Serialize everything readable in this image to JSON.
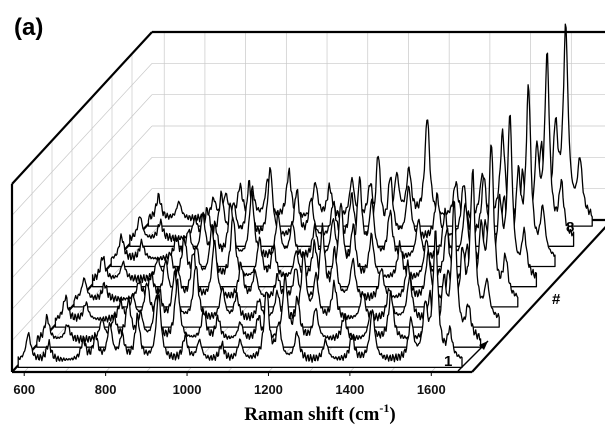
{
  "panel_label": "(a)",
  "chart_data": {
    "type": "line",
    "title": "",
    "xlabel": "Raman shift (cm",
    "xlabel_superscript": "-1",
    "xlabel_close": ")",
    "depth_axis_label": "#",
    "depth_first_label": "1",
    "depth_last_label": "8",
    "xlim": [
      570,
      1700
    ],
    "x_ticks": [
      600,
      800,
      1000,
      1200,
      1400,
      1600
    ],
    "grid": true,
    "series_count": 8,
    "peak_positions_cm-1": [
      600,
      650,
      700,
      735,
      765,
      800,
      830,
      868,
      920,
      985,
      1020,
      1075,
      1120,
      1185,
      1215,
      1260,
      1330,
      1395,
      1445,
      1540,
      1575,
      1600,
      1635
    ],
    "series": [
      {
        "values": [
          [
            600,
            0.35
          ],
          [
            650,
            0.22
          ],
          [
            735,
            0.25
          ],
          [
            765,
            0.3
          ],
          [
            800,
            0.45
          ],
          [
            830,
            0.3
          ],
          [
            868,
            0.55
          ],
          [
            920,
            0.85
          ],
          [
            985,
            0.3
          ],
          [
            1020,
            0.25
          ],
          [
            1075,
            0.2
          ],
          [
            1120,
            0.25
          ],
          [
            1185,
            0.9
          ],
          [
            1215,
            0.45
          ],
          [
            1260,
            0.35
          ],
          [
            1330,
            0.25
          ],
          [
            1395,
            0.3
          ],
          [
            1445,
            0.65
          ],
          [
            1540,
            0.5
          ],
          [
            1575,
            0.65
          ],
          [
            1600,
            1.6
          ],
          [
            1635,
            0.35
          ]
        ]
      },
      {
        "values": [
          [
            600,
            0.3
          ],
          [
            650,
            0.2
          ],
          [
            735,
            0.25
          ],
          [
            765,
            0.28
          ],
          [
            800,
            0.5
          ],
          [
            830,
            0.32
          ],
          [
            868,
            0.55
          ],
          [
            920,
            0.75
          ],
          [
            985,
            0.35
          ],
          [
            1020,
            0.28
          ],
          [
            1075,
            0.22
          ],
          [
            1120,
            0.3
          ],
          [
            1185,
            0.8
          ],
          [
            1215,
            0.5
          ],
          [
            1260,
            0.4
          ],
          [
            1330,
            0.3
          ],
          [
            1395,
            0.35
          ],
          [
            1445,
            0.6
          ],
          [
            1540,
            0.55
          ],
          [
            1575,
            0.7
          ],
          [
            1600,
            1.75
          ],
          [
            1635,
            0.4
          ]
        ]
      },
      {
        "values": [
          [
            600,
            0.3
          ],
          [
            650,
            0.22
          ],
          [
            735,
            0.22
          ],
          [
            765,
            0.3
          ],
          [
            800,
            0.45
          ],
          [
            830,
            0.35
          ],
          [
            868,
            0.6
          ],
          [
            920,
            0.7
          ],
          [
            985,
            0.4
          ],
          [
            1020,
            0.3
          ],
          [
            1075,
            0.25
          ],
          [
            1120,
            0.35
          ],
          [
            1185,
            0.85
          ],
          [
            1215,
            0.55
          ],
          [
            1260,
            0.45
          ],
          [
            1330,
            0.35
          ],
          [
            1395,
            0.4
          ],
          [
            1445,
            0.55
          ],
          [
            1540,
            0.6
          ],
          [
            1575,
            0.8
          ],
          [
            1600,
            1.85
          ],
          [
            1635,
            0.45
          ]
        ]
      },
      {
        "values": [
          [
            600,
            0.28
          ],
          [
            650,
            0.2
          ],
          [
            735,
            0.22
          ],
          [
            765,
            0.3
          ],
          [
            800,
            0.48
          ],
          [
            830,
            0.35
          ],
          [
            868,
            0.6
          ],
          [
            920,
            0.75
          ],
          [
            985,
            0.45
          ],
          [
            1020,
            0.35
          ],
          [
            1075,
            0.3
          ],
          [
            1120,
            0.4
          ],
          [
            1185,
            0.9
          ],
          [
            1215,
            0.6
          ],
          [
            1260,
            0.5
          ],
          [
            1330,
            0.4
          ],
          [
            1395,
            0.45
          ],
          [
            1445,
            0.6
          ],
          [
            1540,
            0.65
          ],
          [
            1575,
            0.85
          ],
          [
            1600,
            1.95
          ],
          [
            1635,
            0.5
          ]
        ]
      },
      {
        "values": [
          [
            600,
            0.3
          ],
          [
            650,
            0.22
          ],
          [
            735,
            0.25
          ],
          [
            765,
            0.32
          ],
          [
            800,
            0.5
          ],
          [
            830,
            0.38
          ],
          [
            868,
            0.65
          ],
          [
            920,
            0.8
          ],
          [
            985,
            0.5
          ],
          [
            1020,
            0.4
          ],
          [
            1075,
            0.35
          ],
          [
            1120,
            0.45
          ],
          [
            1185,
            0.95
          ],
          [
            1215,
            0.65
          ],
          [
            1260,
            0.55
          ],
          [
            1330,
            0.45
          ],
          [
            1395,
            0.5
          ],
          [
            1445,
            0.65
          ],
          [
            1540,
            0.7
          ],
          [
            1575,
            0.9
          ],
          [
            1600,
            2.05
          ],
          [
            1635,
            0.55
          ]
        ]
      },
      {
        "values": [
          [
            600,
            0.3
          ],
          [
            650,
            0.22
          ],
          [
            735,
            0.25
          ],
          [
            765,
            0.35
          ],
          [
            800,
            0.55
          ],
          [
            830,
            0.4
          ],
          [
            868,
            0.7
          ],
          [
            920,
            0.85
          ],
          [
            985,
            0.55
          ],
          [
            1020,
            0.45
          ],
          [
            1075,
            0.4
          ],
          [
            1120,
            0.5
          ],
          [
            1185,
            1.0
          ],
          [
            1215,
            0.7
          ],
          [
            1260,
            0.6
          ],
          [
            1330,
            0.5
          ],
          [
            1395,
            0.6
          ],
          [
            1445,
            0.7
          ],
          [
            1540,
            0.75
          ],
          [
            1575,
            1.0
          ],
          [
            1600,
            2.15
          ],
          [
            1635,
            0.6
          ]
        ]
      },
      {
        "values": [
          [
            600,
            0.3
          ],
          [
            650,
            0.22
          ],
          [
            735,
            0.25
          ],
          [
            765,
            0.35
          ],
          [
            800,
            0.55
          ],
          [
            830,
            0.42
          ],
          [
            868,
            0.7
          ],
          [
            920,
            0.9
          ],
          [
            985,
            0.6
          ],
          [
            1020,
            0.5
          ],
          [
            1075,
            0.45
          ],
          [
            1120,
            0.55
          ],
          [
            1185,
            1.05
          ],
          [
            1215,
            0.75
          ],
          [
            1260,
            0.65
          ],
          [
            1330,
            0.55
          ],
          [
            1395,
            0.7
          ],
          [
            1445,
            0.8
          ],
          [
            1540,
            0.8
          ],
          [
            1575,
            1.05
          ],
          [
            1600,
            2.3
          ],
          [
            1635,
            0.65
          ]
        ]
      },
      {
        "values": [
          [
            600,
            0.3
          ],
          [
            650,
            0.22
          ],
          [
            735,
            0.25
          ],
          [
            765,
            0.3
          ],
          [
            800,
            0.4
          ],
          [
            830,
            0.35
          ],
          [
            868,
            0.5
          ],
          [
            920,
            0.6
          ],
          [
            985,
            0.45
          ],
          [
            1020,
            0.4
          ],
          [
            1075,
            0.5
          ],
          [
            1120,
            0.45
          ],
          [
            1185,
            0.55
          ],
          [
            1215,
            0.6
          ],
          [
            1260,
            1.3
          ],
          [
            1330,
            0.45
          ],
          [
            1395,
            0.55
          ],
          [
            1445,
            1.1
          ],
          [
            1540,
            0.9
          ],
          [
            1575,
            1.1
          ],
          [
            1600,
            2.4
          ],
          [
            1635,
            0.7
          ]
        ]
      }
    ]
  }
}
